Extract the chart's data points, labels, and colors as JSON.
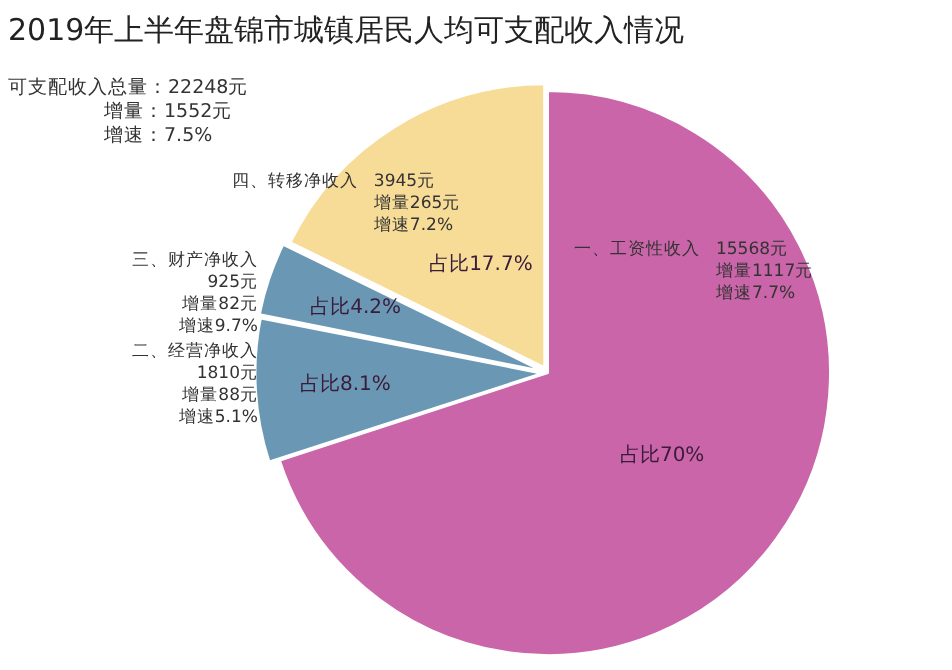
{
  "chart_data": {
    "type": "pie",
    "title": "2019年上半年盘锦市城镇居民人均可支配收入情况",
    "categories": [
      "一、工资性收入",
      "二、经营净收入",
      "三、财产净收入",
      "四、转移净收入"
    ],
    "values": [
      15568,
      1810,
      925,
      3945
    ],
    "colors": [
      "#c965a8",
      "#6a98b4",
      "#6a98b4",
      "#f7dc98"
    ],
    "value_labels": [
      "15568元",
      "1810元",
      "925元",
      "3945元"
    ],
    "legend": false,
    "annotations": [
      "可支配收入总量：22248元",
      "增量：1552元",
      "增速：7.5%",
      {
        "text": "增量1117元",
        "x": "一、工资性收入"
      },
      {
        "text": "增速7.7%",
        "x": "一、工资性收入"
      },
      {
        "text": "占比70%",
        "x": "一、工资性收入"
      },
      {
        "text": "增量88元",
        "x": "二、经营净收入"
      },
      {
        "text": "增速5.1%",
        "x": "二、经营净收入"
      },
      {
        "text": "占比8.1%",
        "x": "二、经营净收入"
      },
      {
        "text": "增量82元",
        "x": "三、财产净收入"
      },
      {
        "text": "增速9.7%",
        "x": "三、财产净收入"
      },
      {
        "text": "占比4.2%",
        "x": "三、财产净收入"
      },
      {
        "text": "增量265元",
        "x": "四、转移净收入"
      },
      {
        "text": "增速7.2%",
        "x": "四、转移净收入"
      },
      {
        "text": "占比17.7%",
        "x": "四、转移净收入"
      }
    ]
  }
}
